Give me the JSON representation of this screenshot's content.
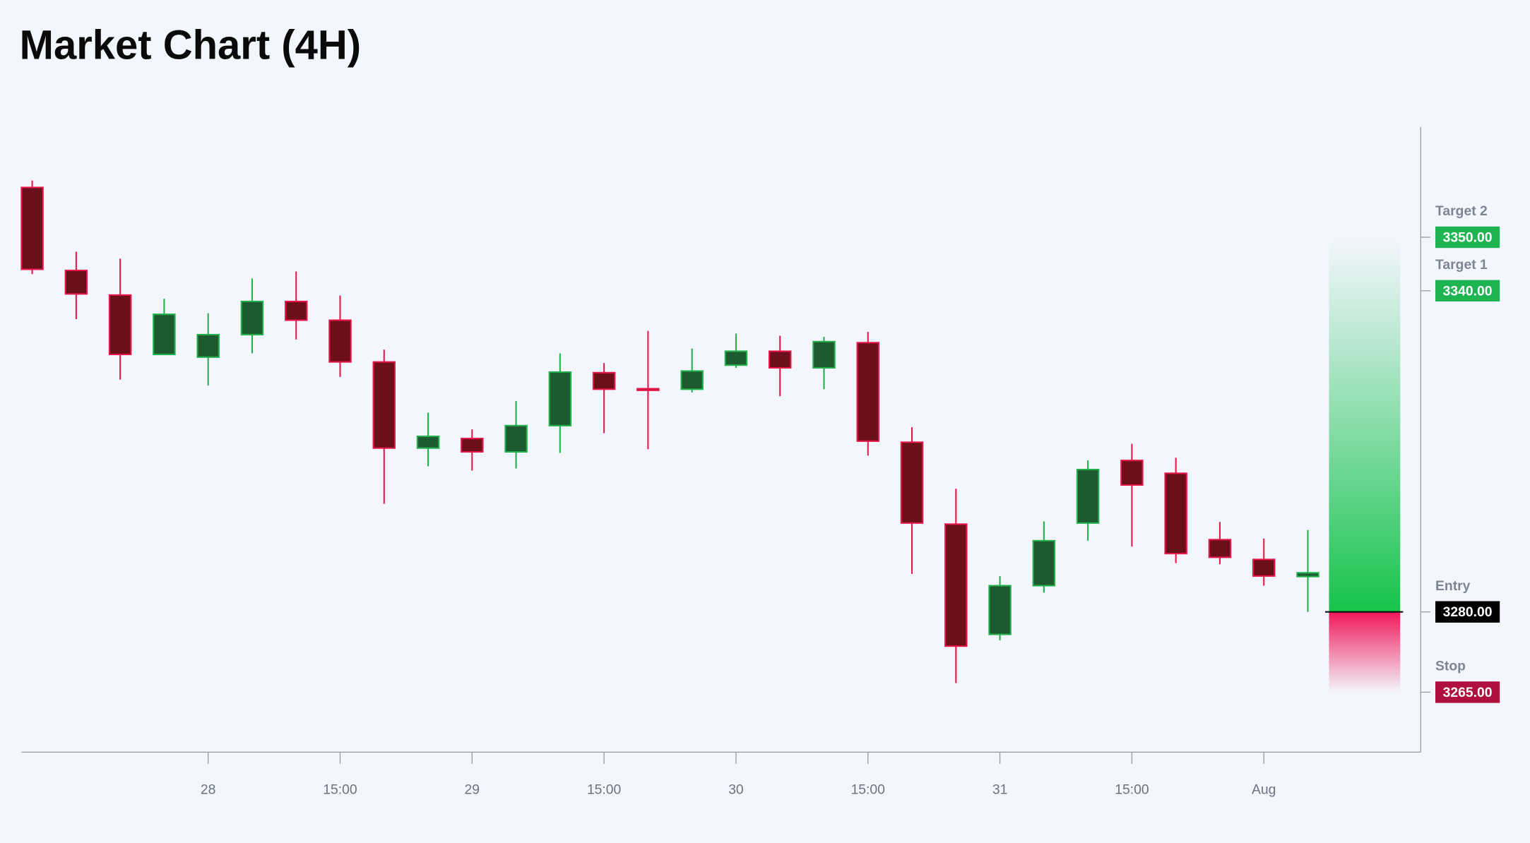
{
  "chart_data": {
    "type": "candlestick",
    "title": "Market Chart (4H)",
    "categories": [
      null,
      null,
      null,
      null,
      "28",
      null,
      null,
      "15:00",
      null,
      null,
      "29",
      null,
      null,
      "15:00",
      null,
      null,
      "30",
      null,
      null,
      "15:00",
      null,
      null,
      "31",
      null,
      null,
      "15:00",
      null,
      null,
      "Aug",
      null
    ],
    "open": [
      3359.3,
      3343.8,
      3339.2,
      3328.1,
      3327.6,
      3331.8,
      3338.0,
      3334.5,
      3326.7,
      3310.6,
      3312.4,
      3309.9,
      3314.8,
      3324.7,
      3321.7,
      3321.6,
      3326.1,
      3328.7,
      3325.6,
      3330.3,
      3311.7,
      3296.4,
      3275.8,
      3284.9,
      3296.6,
      3308.3,
      3305.9,
      3293.5,
      3289.8,
      3286.6
    ],
    "high": [
      3360.6,
      3347.3,
      3346.0,
      3338.5,
      3335.8,
      3342.3,
      3343.6,
      3339.1,
      3329.0,
      3317.2,
      3314.1,
      3319.4,
      3328.3,
      3326.5,
      3332.5,
      3329.2,
      3332.0,
      3331.6,
      3331.4,
      3332.3,
      3314.5,
      3303.0,
      3286.7,
      3296.9,
      3308.3,
      3311.4,
      3308.8,
      3296.8,
      3293.7,
      3295.3
    ],
    "low": [
      3343.1,
      3334.7,
      3323.4,
      3328.0,
      3322.3,
      3328.3,
      3330.9,
      3323.9,
      3300.2,
      3307.2,
      3306.4,
      3306.8,
      3309.7,
      3313.4,
      3310.4,
      3321.0,
      3325.6,
      3320.3,
      3321.6,
      3309.2,
      3287.1,
      3266.7,
      3274.7,
      3283.6,
      3293.3,
      3292.2,
      3289.1,
      3288.9,
      3284.9,
      3280.0
    ],
    "close": [
      3344.0,
      3339.4,
      3328.1,
      3335.6,
      3331.8,
      3338.0,
      3334.5,
      3326.7,
      3310.6,
      3312.8,
      3309.9,
      3314.8,
      3324.8,
      3321.6,
      3321.4,
      3325.0,
      3328.7,
      3325.6,
      3330.5,
      3311.9,
      3296.6,
      3273.6,
      3284.9,
      3293.3,
      3306.6,
      3303.7,
      3290.9,
      3290.2,
      3286.7,
      3287.3
    ],
    "up_color": "#22b04b",
    "up_fill": "#1e5a30",
    "down_color": "#e8174a",
    "down_fill": "#6b0f1a",
    "ylim": [
      3253.8,
      3370.6
    ],
    "levels": [
      {
        "name": "Target 2",
        "value": 3350,
        "value_label": "3350.00",
        "color": "#1fb452"
      },
      {
        "name": "Target 1",
        "value": 3340,
        "value_label": "3340.00",
        "color": "#1fb452"
      },
      {
        "name": "Entry",
        "value": 3280,
        "value_label": "3280.00",
        "color": "#000000"
      },
      {
        "name": "Stop",
        "value": 3265,
        "value_label": "3265.00",
        "color": "#b0103e"
      }
    ]
  }
}
